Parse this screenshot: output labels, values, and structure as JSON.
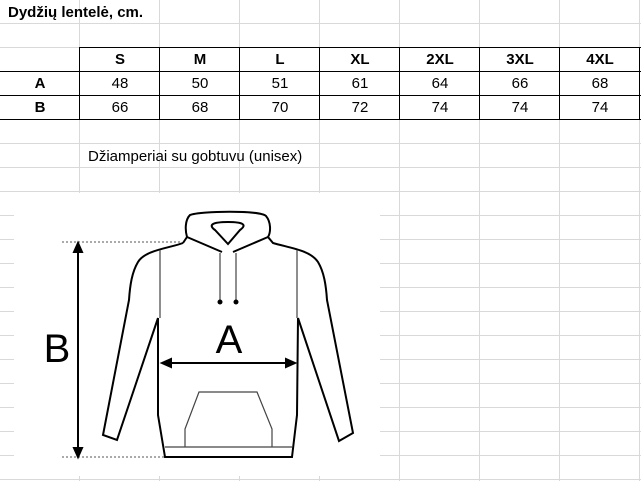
{
  "title": "Dydžių lentelė, cm.",
  "table": {
    "sizes": [
      "S",
      "M",
      "L",
      "XL",
      "2XL",
      "3XL",
      "4XL"
    ],
    "rows": [
      {
        "label": "A",
        "values": [
          "48",
          "50",
          "51",
          "61",
          "64",
          "66",
          "68"
        ]
      },
      {
        "label": "B",
        "values": [
          "66",
          "68",
          "70",
          "72",
          "74",
          "74",
          "74"
        ]
      }
    ]
  },
  "caption": "Džiamperiai su gobtuvu (unisex)",
  "diagram": {
    "label_a": "A",
    "label_b": "B",
    "icon": "hoodie-icon"
  }
}
